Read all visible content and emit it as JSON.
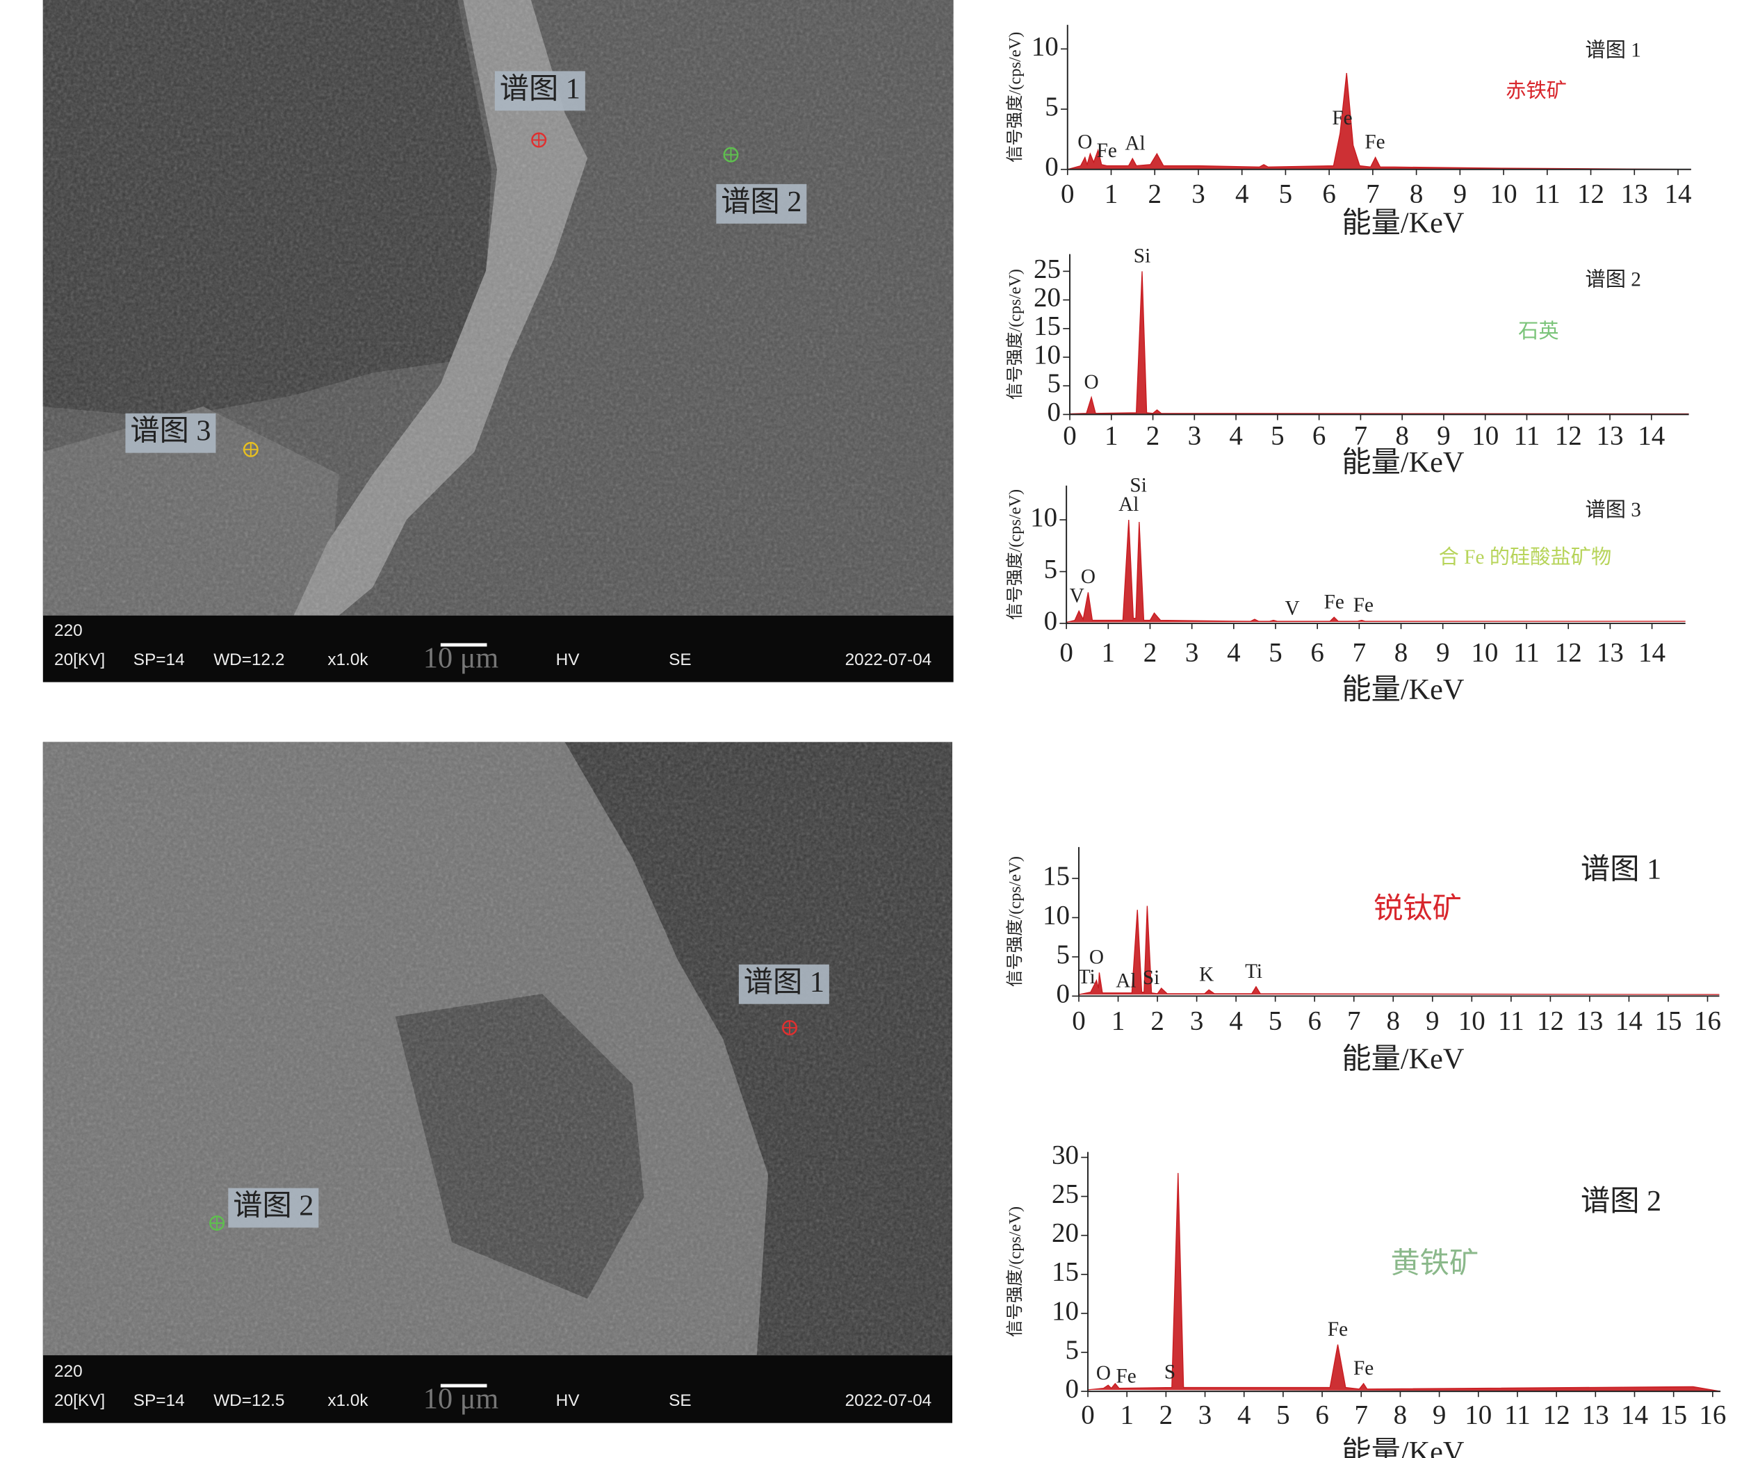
{
  "sem_images": [
    {
      "labels": [
        "谱图 1",
        "谱图 2",
        "谱图 3"
      ],
      "info_top": "220",
      "info": [
        "20[KV]",
        "SP=14",
        "WD=12.2",
        "x1.0k",
        "10 μm",
        "HV",
        "SE",
        "2022-07-04"
      ]
    },
    {
      "labels": [
        "谱图 1",
        "谱图 2"
      ],
      "info_top": "220",
      "info": [
        "20[KV]",
        "SP=14",
        "WD=12.5",
        "x1.0k",
        "10 μm",
        "HV",
        "SE",
        "2022-07-04"
      ]
    }
  ],
  "chart_data": [
    {
      "type": "area",
      "title": "谱图 1",
      "label": "赤铁矿",
      "label_color": "#d8262c",
      "ylabel": "信号强度/(cps/eV)",
      "xlabel": "能量/KeV",
      "color": "#c8191e",
      "x": [
        0,
        0.3,
        0.4,
        0.45,
        0.52,
        0.6,
        0.7,
        0.78,
        0.9,
        1.4,
        1.49,
        1.58,
        1.9,
        2.05,
        2.2,
        3,
        4.4,
        4.5,
        4.6,
        6.1,
        6.25,
        6.4,
        6.55,
        6.7,
        6.95,
        7.06,
        7.17,
        7.5,
        10,
        14.3
      ],
      "values": [
        0,
        0.3,
        1,
        0.4,
        1.3,
        0.6,
        1.6,
        0.4,
        0.3,
        0.3,
        0.9,
        0.3,
        0.4,
        1.3,
        0.3,
        0.3,
        0.2,
        0.4,
        0.2,
        0.3,
        3,
        8,
        2,
        0.3,
        0.2,
        1,
        0.2,
        0.2,
        0.1,
        0
      ],
      "xlim": [
        0,
        14.3
      ],
      "ylim": [
        0,
        12
      ],
      "xticks": [
        0,
        1,
        2,
        3,
        4,
        5,
        6,
        7,
        8,
        9,
        10,
        11,
        12,
        13,
        14
      ],
      "yticks": [
        0,
        5,
        10
      ],
      "annotations": [
        {
          "text": "O",
          "x": 0.4
        },
        {
          "text": "Fe",
          "x": 0.9
        },
        {
          "text": "Al",
          "x": 1.55
        },
        {
          "text": "Fe",
          "x": 6.3
        },
        {
          "text": "Fe",
          "x": 7.05
        }
      ]
    },
    {
      "type": "area",
      "title": "谱图 2",
      "label": "石英",
      "label_color": "#7bc47a",
      "ylabel": "信号强度/(cps/eV)",
      "xlabel": "能量/KeV",
      "color": "#c8191e",
      "x": [
        0,
        0.4,
        0.52,
        0.62,
        1.6,
        1.74,
        1.85,
        2.0,
        2.1,
        2.2,
        14.9
      ],
      "values": [
        0.1,
        0.2,
        3,
        0.2,
        0.3,
        25,
        0.3,
        0.2,
        0.8,
        0.2,
        0.1
      ],
      "xlim": [
        0,
        14.9
      ],
      "ylim": [
        0,
        28
      ],
      "xticks": [
        0,
        1,
        2,
        3,
        4,
        5,
        6,
        7,
        8,
        9,
        10,
        11,
        12,
        13,
        14
      ],
      "yticks": [
        0,
        5,
        10,
        15,
        20,
        25
      ],
      "annotations": [
        {
          "text": "O",
          "x": 0.52
        },
        {
          "text": "Si",
          "x": 1.74
        }
      ]
    },
    {
      "type": "area",
      "title": "谱图 3",
      "label": "合 Fe 的硅酸盐矿物",
      "label_color": "#b7d45a",
      "ylabel": "信号强度/(cps/eV)",
      "xlabel": "能量/KeV",
      "color": "#c8191e",
      "x": [
        0,
        0.2,
        0.3,
        0.4,
        0.52,
        0.62,
        1.35,
        1.49,
        1.6,
        1.66,
        1.74,
        1.85,
        2.0,
        2.1,
        2.25,
        4.4,
        4.5,
        4.6,
        4.85,
        4.95,
        5.05,
        6.3,
        6.4,
        6.5,
        6.95,
        7.06,
        7.15,
        14.8
      ],
      "values": [
        0.1,
        0.3,
        1.2,
        0.4,
        3,
        0.3,
        0.3,
        10,
        0.5,
        0.5,
        9.8,
        0.3,
        0.3,
        1,
        0.3,
        0.2,
        0.4,
        0.2,
        0.2,
        0.3,
        0.2,
        0.2,
        0.6,
        0.2,
        0.2,
        0.3,
        0.2,
        0.2
      ],
      "xlim": [
        0,
        14.8
      ],
      "ylim": [
        0,
        13.3
      ],
      "xticks": [
        0,
        1,
        2,
        3,
        4,
        5,
        6,
        7,
        8,
        9,
        10,
        11,
        12,
        13,
        14
      ],
      "yticks": [
        0,
        5,
        10
      ],
      "annotations": [
        {
          "text": "V",
          "x": 0.25
        },
        {
          "text": "O",
          "x": 0.52
        },
        {
          "text": "Al",
          "x": 1.49
        },
        {
          "text": "Si",
          "x": 1.72
        },
        {
          "text": "V",
          "x": 5.4
        },
        {
          "text": "Fe",
          "x": 6.4
        },
        {
          "text": "Fe",
          "x": 7.1
        }
      ]
    },
    {
      "type": "area",
      "title": "谱图 1",
      "label": "锐钛矿",
      "label_color": "#d8262c",
      "ylabel": "信号强度/(cps/eV)",
      "xlabel": "能量/KeV",
      "color": "#c8191e",
      "x": [
        0,
        0.3,
        0.45,
        0.5,
        0.52,
        0.6,
        1.35,
        1.49,
        1.6,
        1.66,
        1.74,
        1.85,
        2.0,
        2.1,
        2.25,
        3.2,
        3.31,
        3.45,
        4.4,
        4.51,
        4.62,
        16.3
      ],
      "values": [
        0.2,
        0.5,
        2,
        1,
        3,
        0.4,
        0.4,
        11,
        0.5,
        0.5,
        11.5,
        0.4,
        0.3,
        1,
        0.3,
        0.3,
        0.8,
        0.3,
        0.3,
        1.2,
        0.3,
        0.2
      ],
      "xlim": [
        0,
        16.3
      ],
      "ylim": [
        0,
        19
      ],
      "xticks": [
        0,
        1,
        2,
        3,
        4,
        5,
        6,
        7,
        8,
        9,
        10,
        11,
        12,
        13,
        14,
        15,
        16
      ],
      "yticks": [
        0,
        5,
        10,
        15
      ],
      "annotations": [
        {
          "text": "Ti",
          "x": 0.2
        },
        {
          "text": "O",
          "x": 0.45
        },
        {
          "text": "Al",
          "x": 1.2
        },
        {
          "text": "Si",
          "x": 1.84
        },
        {
          "text": "K",
          "x": 3.25
        },
        {
          "text": "Ti",
          "x": 4.45
        }
      ]
    },
    {
      "type": "area",
      "title": "谱图 2",
      "label": "黄铁矿",
      "label_color": "#8ab88a",
      "ylabel": "信号强度/(cps/eV)",
      "xlabel": "能量/KeV",
      "color": "#c8191e",
      "x": [
        0,
        0.4,
        0.52,
        0.6,
        0.7,
        0.8,
        2.15,
        2.31,
        2.45,
        6.2,
        6.4,
        6.6,
        6.95,
        7.06,
        7.15,
        15.5,
        16.2
      ],
      "values": [
        0.2,
        0.4,
        0.8,
        0.4,
        1,
        0.4,
        0.5,
        28,
        0.5,
        0.5,
        6,
        0.5,
        0.3,
        1,
        0.3,
        0.6,
        0
      ],
      "xlim": [
        0,
        16.2
      ],
      "ylim": [
        0,
        30.7
      ],
      "xticks": [
        0,
        1,
        2,
        3,
        4,
        5,
        6,
        7,
        8,
        9,
        10,
        11,
        12,
        13,
        14,
        15,
        16
      ],
      "yticks": [
        0,
        5,
        10,
        15,
        20,
        25,
        30
      ],
      "annotations": [
        {
          "text": "O",
          "x": 0.4
        },
        {
          "text": "Fe",
          "x": 0.98
        },
        {
          "text": "S",
          "x": 2.1
        },
        {
          "text": "Fe",
          "x": 6.4
        },
        {
          "text": "Fe",
          "x": 7.06
        }
      ]
    }
  ]
}
